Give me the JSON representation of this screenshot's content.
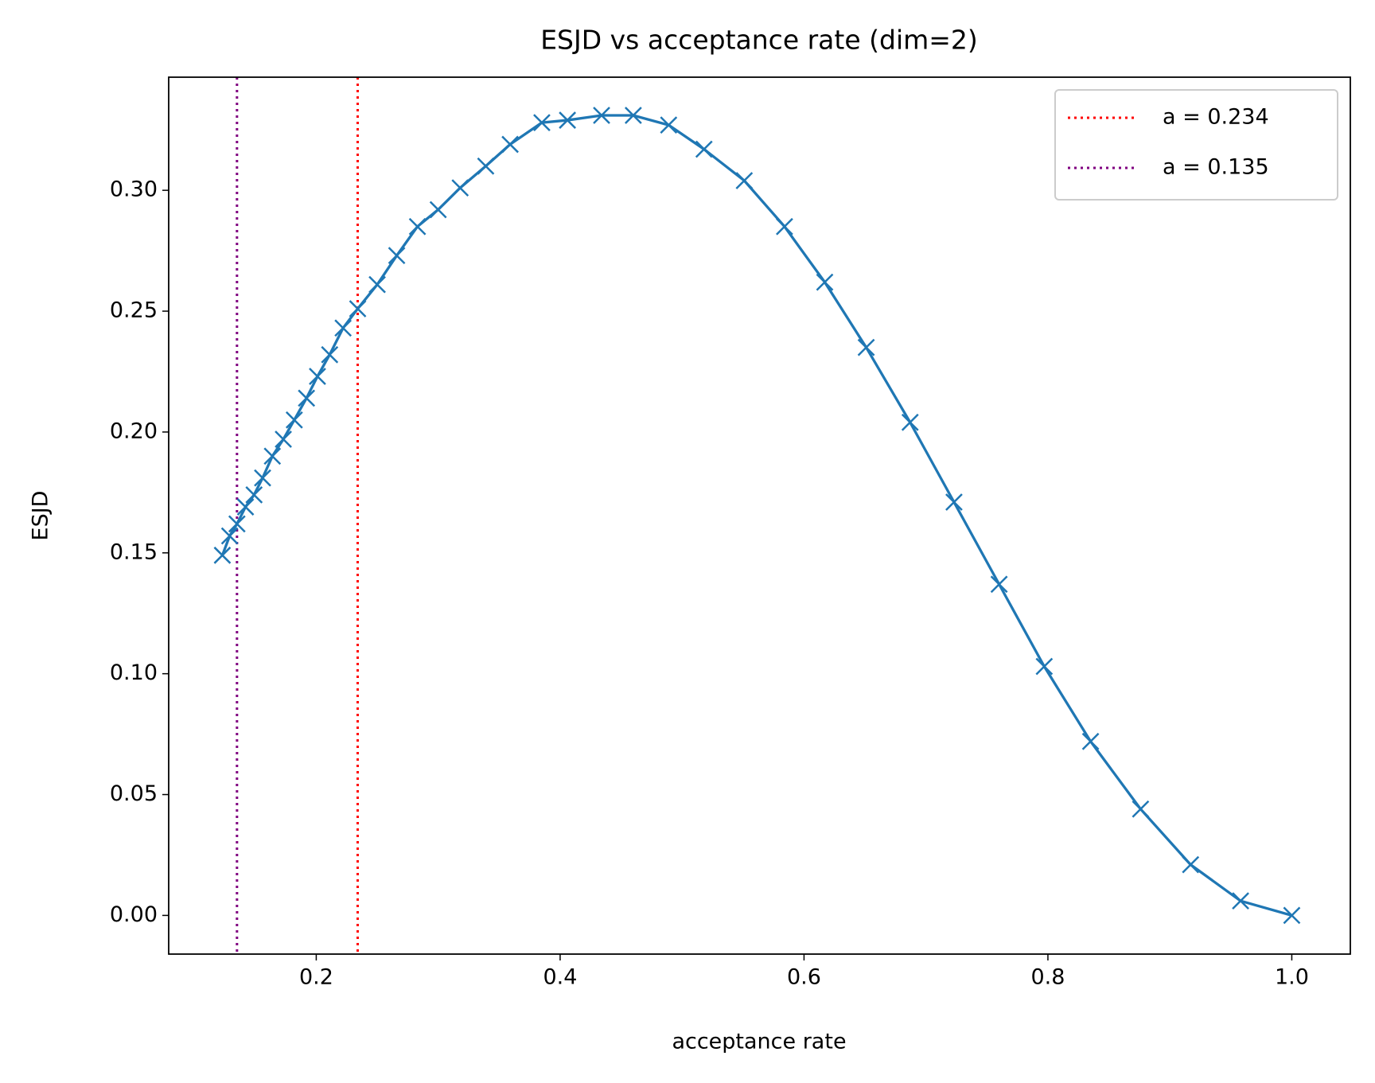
{
  "chart_data": {
    "type": "line",
    "title": "ESJD vs acceptance rate (dim=2)",
    "xlabel": "acceptance rate",
    "ylabel": "ESJD",
    "x": [
      0.123,
      0.129,
      0.135,
      0.142,
      0.149,
      0.156,
      0.164,
      0.173,
      0.182,
      0.192,
      0.201,
      0.211,
      0.222,
      0.234,
      0.25,
      0.266,
      0.283,
      0.3,
      0.318,
      0.339,
      0.359,
      0.385,
      0.406,
      0.434,
      0.46,
      0.489,
      0.518,
      0.551,
      0.584,
      0.617,
      0.651,
      0.687,
      0.723,
      0.76,
      0.797,
      0.835,
      0.876,
      0.917,
      0.958,
      1.0
    ],
    "series": [
      {
        "color": "#1f77b4",
        "marker": "x",
        "values": [
          0.149,
          0.157,
          0.162,
          0.169,
          0.174,
          0.181,
          0.19,
          0.197,
          0.205,
          0.214,
          0.223,
          0.232,
          0.243,
          0.251,
          0.261,
          0.273,
          0.285,
          0.292,
          0.301,
          0.31,
          0.319,
          0.328,
          0.329,
          0.331,
          0.331,
          0.327,
          0.317,
          0.304,
          0.285,
          0.262,
          0.235,
          0.204,
          0.171,
          0.137,
          0.103,
          0.072,
          0.044,
          0.021,
          0.006,
          0.0
        ]
      }
    ],
    "vlines": [
      {
        "x": 0.234,
        "color": "red",
        "label": "a = 0.234"
      },
      {
        "x": 0.135,
        "color": "purple",
        "label": "a = 0.135"
      }
    ],
    "xlim": [
      0.079,
      1.048
    ],
    "ylim": [
      -0.016,
      0.3468
    ],
    "xticks": [
      0.2,
      0.4,
      0.6,
      0.8,
      {
        "value": 1,
        "label": "1.0"
      }
    ],
    "yticks": [
      {
        "value": 0,
        "label": "0.00"
      },
      0.05,
      {
        "value": 0.1,
        "label": "0.10"
      },
      0.15,
      {
        "value": 0.2,
        "label": "0.20"
      },
      0.25,
      {
        "value": 0.3,
        "label": "0.30"
      }
    ],
    "legend": "upper right"
  }
}
